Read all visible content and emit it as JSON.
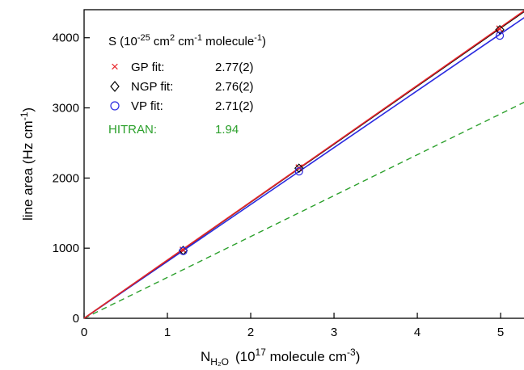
{
  "chart_data": {
    "type": "scatter",
    "xlabel": {
      "pre": "N",
      "sub": "H₂O",
      "main": "(10",
      "exp": "17",
      "unit": " molecule cm",
      "unit_exp": "-3",
      "close": ")"
    },
    "ylabel": {
      "main": "line area  (Hz cm",
      "exp": "-1",
      "close": ")"
    },
    "xlim": [
      0,
      5.3
    ],
    "ylim": [
      0,
      4400
    ],
    "xticks": [
      0,
      1,
      2,
      3,
      4,
      5
    ],
    "yticks": [
      0,
      1000,
      2000,
      3000,
      4000
    ],
    "grid": false,
    "legend_placement": "top-left",
    "legend_title": {
      "main": "S (10",
      "exp1": "-25",
      "mid1": " cm",
      "exp2": "2",
      "mid2": " cm",
      "exp3": "-1",
      "mid3": " molecule",
      "exp4": "-1",
      "close": ")"
    },
    "series": [
      {
        "name": "GP fit:",
        "value": "2.77(2)",
        "marker": "x",
        "color": "#e8262b",
        "points": [
          [
            1.19,
            972
          ],
          [
            2.58,
            2145
          ],
          [
            4.99,
            4125
          ]
        ],
        "line": [
          [
            0,
            0
          ],
          [
            5.3,
            4400
          ]
        ]
      },
      {
        "name": "NGP fit:",
        "value": "2.76(2)",
        "marker": "diamond",
        "color": "#000000",
        "points": [
          [
            1.19,
            968
          ],
          [
            2.58,
            2140
          ],
          [
            4.99,
            4115
          ]
        ],
        "line": [
          [
            0,
            0
          ],
          [
            5.3,
            4388
          ]
        ]
      },
      {
        "name": "VP fit:",
        "value": "2.71(2)",
        "marker": "circle",
        "color": "#2b2be0",
        "points": [
          [
            1.19,
            960
          ],
          [
            2.58,
            2095
          ],
          [
            4.99,
            4030
          ]
        ],
        "line": [
          [
            0,
            0
          ],
          [
            5.3,
            4300
          ]
        ]
      },
      {
        "name": "HITRAN:",
        "value": "1.94",
        "marker": "none",
        "color": "#2ca02c",
        "dashed": true,
        "line": [
          [
            0,
            0
          ],
          [
            5.3,
            3090
          ]
        ]
      }
    ]
  }
}
